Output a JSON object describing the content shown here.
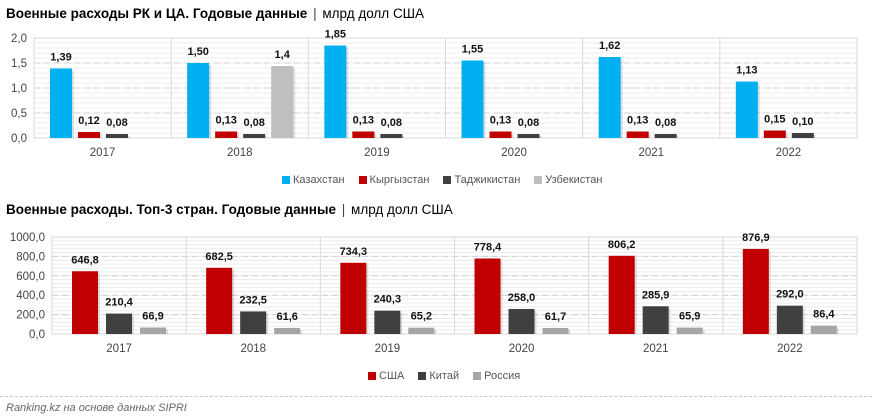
{
  "colors": {
    "kazakhstan": "#00b0f0",
    "kyrgyzstan": "#c00000",
    "tajikistan": "#404040",
    "uzbekistan": "#bfbfbf",
    "usa": "#c00000",
    "china": "#404040",
    "russia": "#a6a6a6"
  },
  "footer": "Ranking.kz на основе данных SIPRI",
  "chart_data": [
    {
      "type": "bar",
      "title": "Военные расходы РК и ЦА. Годовые данные",
      "title_unit": "млрд долл США",
      "title_separator": "|",
      "xlabel": "",
      "ylabel": "",
      "ylim": [
        0,
        2.0
      ],
      "yticks": [
        "0,0",
        "0,5",
        "1,0",
        "1,5",
        "2,0"
      ],
      "ytick_values": [
        0,
        0.5,
        1.0,
        1.5,
        2.0
      ],
      "grid": true,
      "legend_position": "bottom",
      "categories": [
        "2017",
        "2018",
        "2019",
        "2020",
        "2021",
        "2022"
      ],
      "series": [
        {
          "name": "Казахстан",
          "color_key": "kazakhstan",
          "values": [
            1.39,
            1.5,
            1.85,
            1.55,
            1.62,
            1.13
          ],
          "labels": [
            "1,39",
            "1,50",
            "1,85",
            "1,55",
            "1,62",
            "1,13"
          ]
        },
        {
          "name": "Кыргызстан",
          "color_key": "kyrgyzstan",
          "values": [
            0.12,
            0.13,
            0.13,
            0.13,
            0.13,
            0.15
          ],
          "labels": [
            "0,12",
            "0,13",
            "0,13",
            "0,13",
            "0,13",
            "0,15"
          ]
        },
        {
          "name": "Таджикистан",
          "color_key": "tajikistan",
          "values": [
            0.08,
            0.08,
            0.08,
            0.08,
            0.08,
            0.1
          ],
          "labels": [
            "0,08",
            "0,08",
            "0,08",
            "0,08",
            "0,08",
            "0,10"
          ]
        },
        {
          "name": "Узбекистан",
          "color_key": "uzbekistan",
          "values": [
            null,
            1.44,
            null,
            null,
            null,
            null
          ],
          "labels": [
            null,
            "1,4",
            null,
            null,
            null,
            null
          ]
        }
      ]
    },
    {
      "type": "bar",
      "title": "Военные расходы. Топ-3 стран. Годовые данные",
      "title_unit": "млрд долл США",
      "title_separator": "|",
      "xlabel": "",
      "ylabel": "",
      "ylim": [
        0,
        1000
      ],
      "yticks": [
        "0,0",
        "200,0",
        "400,0",
        "600,0",
        "800,0",
        "1000,0"
      ],
      "ytick_values": [
        0,
        200,
        400,
        600,
        800,
        1000
      ],
      "grid": true,
      "legend_position": "bottom",
      "categories": [
        "2017",
        "2018",
        "2019",
        "2020",
        "2021",
        "2022"
      ],
      "series": [
        {
          "name": "США",
          "color_key": "usa",
          "values": [
            646.8,
            682.5,
            734.3,
            778.4,
            806.2,
            876.9
          ],
          "labels": [
            "646,8",
            "682,5",
            "734,3",
            "778,4",
            "806,2",
            "876,9"
          ]
        },
        {
          "name": "Китай",
          "color_key": "china",
          "values": [
            210.4,
            232.5,
            240.3,
            258.0,
            285.9,
            292.0
          ],
          "labels": [
            "210,4",
            "232,5",
            "240,3",
            "258,0",
            "285,9",
            "292,0"
          ]
        },
        {
          "name": "Россия",
          "color_key": "russia",
          "values": [
            66.9,
            61.6,
            65.2,
            61.7,
            65.9,
            86.4
          ],
          "labels": [
            "66,9",
            "61,6",
            "65,2",
            "61,7",
            "65,9",
            "86,4"
          ]
        }
      ]
    }
  ]
}
